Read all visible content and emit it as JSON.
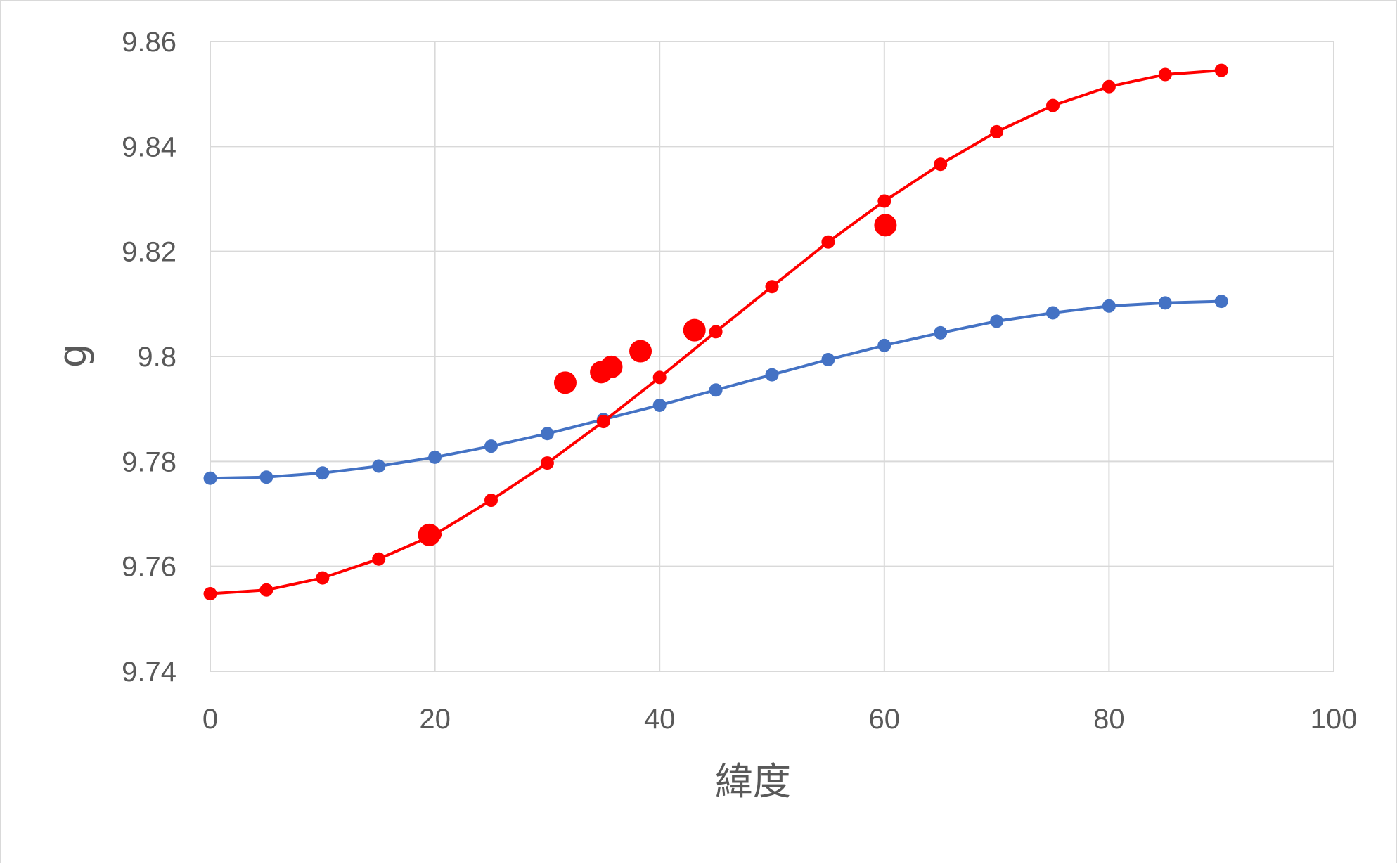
{
  "chart_data": {
    "type": "scatter",
    "xlabel": "緯度",
    "ylabel": "g",
    "xlim": [
      0,
      100
    ],
    "ylim": [
      9.74,
      9.86
    ],
    "x_ticks": [
      "0",
      "20",
      "40",
      "60",
      "80",
      "100"
    ],
    "y_ticks": [
      "9.74",
      "9.76",
      "9.78",
      "9.8",
      "9.82",
      "9.84",
      "9.86"
    ],
    "grid": true,
    "series": [
      {
        "color": "#4472c4",
        "style": "line-markers",
        "points": [
          [
            0,
            9.7768
          ],
          [
            5,
            9.777
          ],
          [
            10,
            9.7778
          ],
          [
            15,
            9.7791
          ],
          [
            20,
            9.7808
          ],
          [
            25,
            9.7829
          ],
          [
            30,
            9.7853
          ],
          [
            35,
            9.788
          ],
          [
            40,
            9.7907
          ],
          [
            45,
            9.7936
          ],
          [
            50,
            9.7965
          ],
          [
            55,
            9.7994
          ],
          [
            60,
            9.8021
          ],
          [
            65,
            9.8045
          ],
          [
            70,
            9.8067
          ],
          [
            75,
            9.8083
          ],
          [
            80,
            9.8096
          ],
          [
            85,
            9.8102
          ],
          [
            90,
            9.8105
          ]
        ]
      },
      {
        "color": "#ff0000",
        "style": "line-markers",
        "points": [
          [
            0,
            9.7548
          ],
          [
            5,
            9.7555
          ],
          [
            10,
            9.7578
          ],
          [
            15,
            9.7614
          ],
          [
            20,
            9.7661
          ],
          [
            25,
            9.7726
          ],
          [
            30,
            9.7797
          ],
          [
            35,
            9.7876
          ],
          [
            40,
            9.796
          ],
          [
            45,
            9.8047
          ],
          [
            50,
            9.8133
          ],
          [
            55,
            9.8218
          ],
          [
            60,
            9.8296
          ],
          [
            65,
            9.8366
          ],
          [
            70,
            9.8428
          ],
          [
            75,
            9.8478
          ],
          [
            80,
            9.8514
          ],
          [
            85,
            9.8537
          ],
          [
            90,
            9.8545
          ]
        ]
      },
      {
        "color": "#ff0000",
        "style": "markers",
        "points": [
          [
            19.5,
            9.766
          ],
          [
            31.6,
            9.795
          ],
          [
            34.8,
            9.797
          ],
          [
            35.7,
            9.798
          ],
          [
            38.3,
            9.801
          ],
          [
            43.1,
            9.805
          ],
          [
            60.1,
            9.825
          ]
        ]
      }
    ]
  }
}
